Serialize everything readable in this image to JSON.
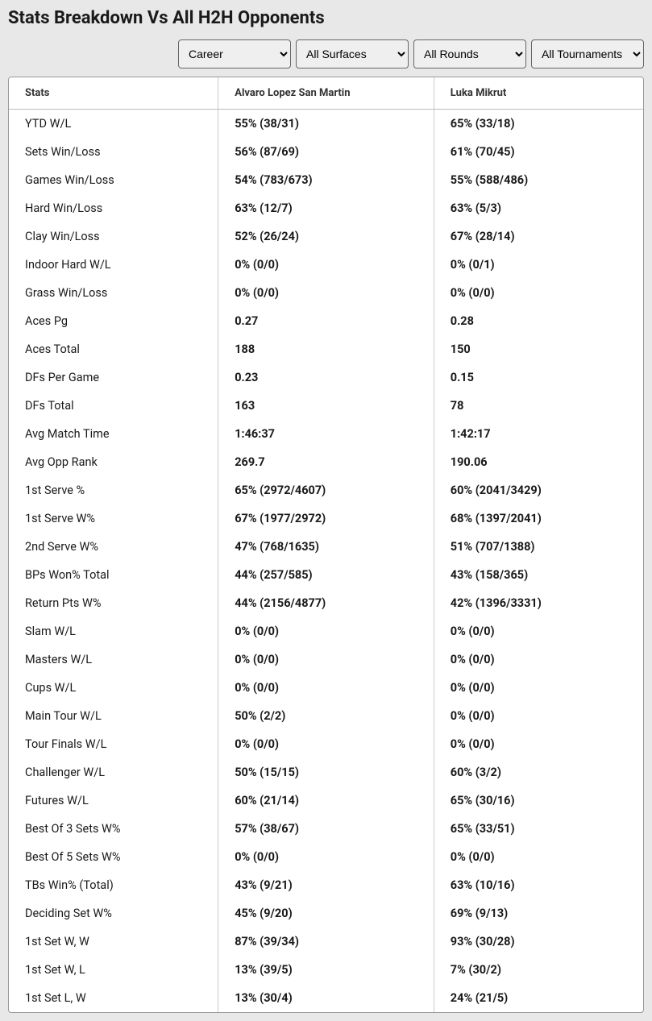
{
  "title": "Stats Breakdown Vs All H2H Opponents",
  "filters": {
    "period": "Career",
    "surface": "All Surfaces",
    "round": "All Rounds",
    "tournament": "All Tournaments"
  },
  "columns": {
    "stats": "Stats",
    "player1": "Alvaro Lopez San Martin",
    "player2": "Luka Mikrut"
  },
  "rows": [
    {
      "label": "YTD W/L",
      "p1": "55% (38/31)",
      "p2": "65% (33/18)"
    },
    {
      "label": "Sets Win/Loss",
      "p1": "56% (87/69)",
      "p2": "61% (70/45)"
    },
    {
      "label": "Games Win/Loss",
      "p1": "54% (783/673)",
      "p2": "55% (588/486)"
    },
    {
      "label": "Hard Win/Loss",
      "p1": "63% (12/7)",
      "p2": "63% (5/3)"
    },
    {
      "label": "Clay Win/Loss",
      "p1": "52% (26/24)",
      "p2": "67% (28/14)"
    },
    {
      "label": "Indoor Hard W/L",
      "p1": "0% (0/0)",
      "p2": "0% (0/1)"
    },
    {
      "label": "Grass Win/Loss",
      "p1": "0% (0/0)",
      "p2": "0% (0/0)"
    },
    {
      "label": "Aces Pg",
      "p1": "0.27",
      "p2": "0.28"
    },
    {
      "label": "Aces Total",
      "p1": "188",
      "p2": "150"
    },
    {
      "label": "DFs Per Game",
      "p1": "0.23",
      "p2": "0.15"
    },
    {
      "label": "DFs Total",
      "p1": "163",
      "p2": "78"
    },
    {
      "label": "Avg Match Time",
      "p1": "1:46:37",
      "p2": "1:42:17"
    },
    {
      "label": "Avg Opp Rank",
      "p1": "269.7",
      "p2": "190.06"
    },
    {
      "label": "1st Serve %",
      "p1": "65% (2972/4607)",
      "p2": "60% (2041/3429)"
    },
    {
      "label": "1st Serve W%",
      "p1": "67% (1977/2972)",
      "p2": "68% (1397/2041)"
    },
    {
      "label": "2nd Serve W%",
      "p1": "47% (768/1635)",
      "p2": "51% (707/1388)"
    },
    {
      "label": "BPs Won% Total",
      "p1": "44% (257/585)",
      "p2": "43% (158/365)"
    },
    {
      "label": "Return Pts W%",
      "p1": "44% (2156/4877)",
      "p2": "42% (1396/3331)"
    },
    {
      "label": "Slam W/L",
      "p1": "0% (0/0)",
      "p2": "0% (0/0)"
    },
    {
      "label": "Masters W/L",
      "p1": "0% (0/0)",
      "p2": "0% (0/0)"
    },
    {
      "label": "Cups W/L",
      "p1": "0% (0/0)",
      "p2": "0% (0/0)"
    },
    {
      "label": "Main Tour W/L",
      "p1": "50% (2/2)",
      "p2": "0% (0/0)"
    },
    {
      "label": "Tour Finals W/L",
      "p1": "0% (0/0)",
      "p2": "0% (0/0)"
    },
    {
      "label": "Challenger W/L",
      "p1": "50% (15/15)",
      "p2": "60% (3/2)"
    },
    {
      "label": "Futures W/L",
      "p1": "60% (21/14)",
      "p2": "65% (30/16)"
    },
    {
      "label": "Best Of 3 Sets W%",
      "p1": "57% (38/67)",
      "p2": "65% (33/51)"
    },
    {
      "label": "Best Of 5 Sets W%",
      "p1": "0% (0/0)",
      "p2": "0% (0/0)"
    },
    {
      "label": "TBs Win% (Total)",
      "p1": "43% (9/21)",
      "p2": "63% (10/16)"
    },
    {
      "label": "Deciding Set W%",
      "p1": "45% (9/20)",
      "p2": "69% (9/13)"
    },
    {
      "label": "1st Set W, W",
      "p1": "87% (39/34)",
      "p2": "93% (30/28)"
    },
    {
      "label": "1st Set W, L",
      "p1": "13% (39/5)",
      "p2": "7% (30/2)"
    },
    {
      "label": "1st Set L, W",
      "p1": "13% (30/4)",
      "p2": "24% (21/5)"
    }
  ]
}
